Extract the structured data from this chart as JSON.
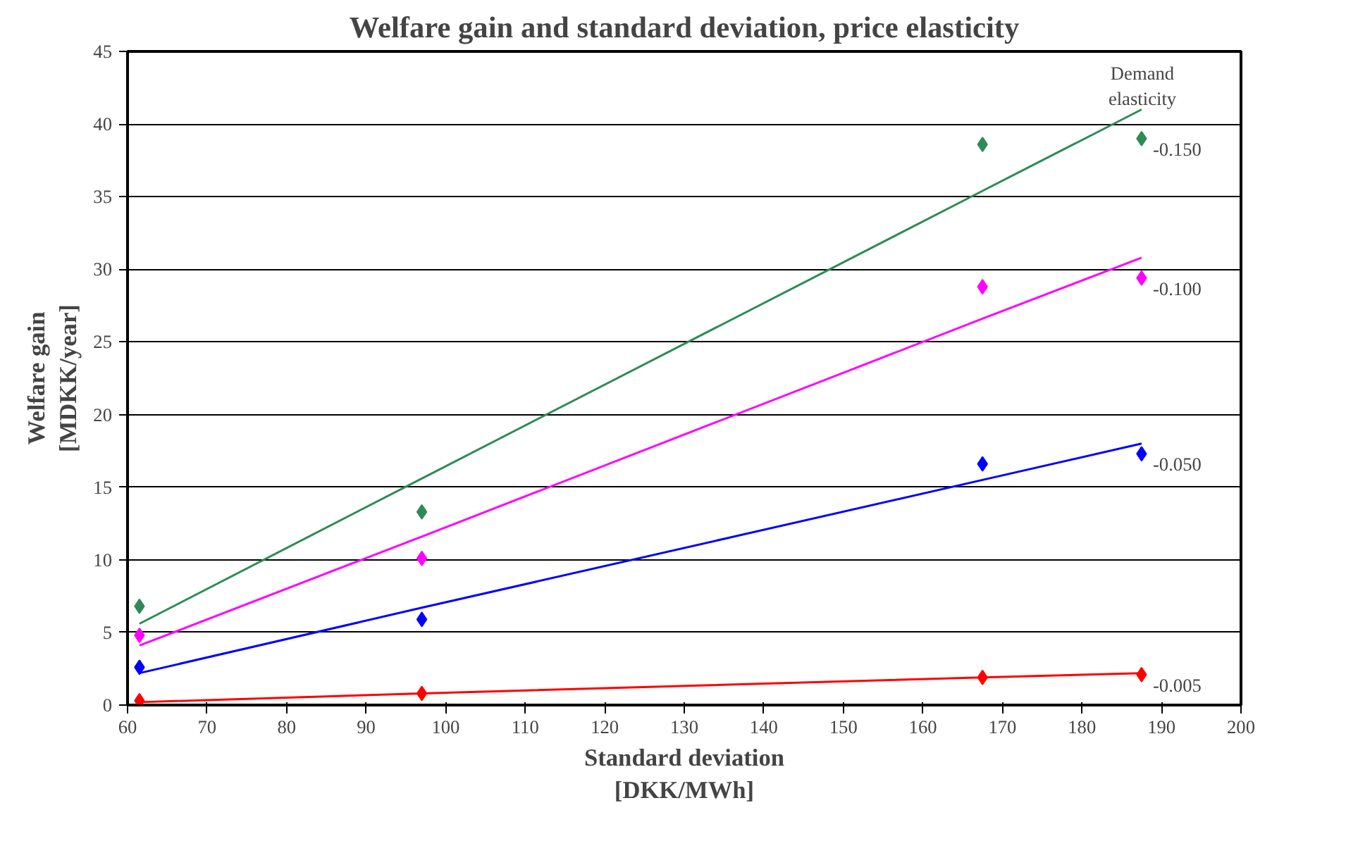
{
  "chart_data": {
    "type": "scatter",
    "title": "Welfare gain and standard deviation, price elasticity",
    "xlabel": "Standard deviation\n[DKK/MWh]",
    "ylabel": "Welfare gain\n[MDKK/year]",
    "x": [
      61.5,
      97,
      167.5,
      187.5
    ],
    "series": [
      {
        "name": "-0.150",
        "marker": "diamond",
        "color": "#2e8b57",
        "values": [
          6.8,
          13.3,
          38.6,
          39.0
        ]
      },
      {
        "name": "-0.100",
        "marker": "diamond",
        "color": "#ff00ff",
        "values": [
          4.8,
          10.1,
          28.8,
          29.4
        ]
      },
      {
        "name": "-0.050",
        "marker": "diamond",
        "color": "#0000ff",
        "values": [
          2.6,
          5.9,
          16.6,
          17.3
        ]
      },
      {
        "name": "-0.005",
        "marker": "diamond",
        "color": "#ff0000",
        "values": [
          0.3,
          0.8,
          1.9,
          2.1
        ]
      },
      {
        "type": "line",
        "color": "#2e8b57",
        "values": [
          5.6,
          15.6,
          35.4,
          41.0
        ]
      },
      {
        "type": "line",
        "color": "#ff00ff",
        "values": [
          4.1,
          11.6,
          26.6,
          30.8
        ]
      },
      {
        "type": "line",
        "color": "#0000ff",
        "values": [
          2.2,
          6.7,
          15.5,
          18.0
        ]
      },
      {
        "type": "line",
        "color": "#ff0000",
        "values": [
          0.2,
          0.8,
          1.9,
          2.2
        ]
      }
    ],
    "annotations": [
      "Demand elasticity"
    ],
    "xlim": [
      60,
      200
    ],
    "xticks": [
      60,
      70,
      80,
      90,
      100,
      110,
      120,
      130,
      140,
      150,
      160,
      170,
      180,
      190,
      200
    ],
    "ylim": [
      0,
      45
    ],
    "yticks": [
      0,
      5,
      10,
      15,
      20,
      25,
      30,
      35,
      40,
      45
    ],
    "grid": "y",
    "line_style": "solid"
  }
}
